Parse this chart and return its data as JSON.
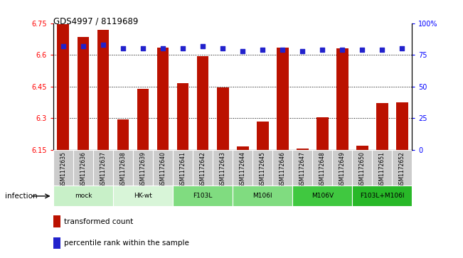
{
  "title": "GDS4997 / 8119689",
  "samples": [
    "GSM1172635",
    "GSM1172636",
    "GSM1172637",
    "GSM1172638",
    "GSM1172639",
    "GSM1172640",
    "GSM1172641",
    "GSM1172642",
    "GSM1172643",
    "GSM1172644",
    "GSM1172645",
    "GSM1172646",
    "GSM1172647",
    "GSM1172648",
    "GSM1172649",
    "GSM1172650",
    "GSM1172651",
    "GSM1172652"
  ],
  "bar_values": [
    6.745,
    6.685,
    6.72,
    6.295,
    6.44,
    6.635,
    6.465,
    6.595,
    6.445,
    6.165,
    6.285,
    6.635,
    6.155,
    6.305,
    6.63,
    6.17,
    6.37,
    6.375
  ],
  "percentile_values": [
    82,
    82,
    83,
    80,
    80,
    80,
    80,
    82,
    80,
    78,
    79,
    79,
    78,
    79,
    79,
    79,
    79,
    80
  ],
  "groups": [
    {
      "label": "mock",
      "start": 0,
      "end": 3,
      "color": "#c8f0c8"
    },
    {
      "label": "HK-wt",
      "start": 3,
      "end": 6,
      "color": "#d8f5d8"
    },
    {
      "label": "F103L",
      "start": 6,
      "end": 9,
      "color": "#80dc80"
    },
    {
      "label": "M106I",
      "start": 9,
      "end": 12,
      "color": "#80dc80"
    },
    {
      "label": "M106V",
      "start": 12,
      "end": 15,
      "color": "#40c840"
    },
    {
      "label": "F103L+M106I",
      "start": 15,
      "end": 18,
      "color": "#28b828"
    }
  ],
  "ylim_left": [
    6.15,
    6.75
  ],
  "ylim_right": [
    0,
    100
  ],
  "yticks_left": [
    6.15,
    6.3,
    6.45,
    6.6,
    6.75
  ],
  "yticks_right": [
    0,
    25,
    50,
    75,
    100
  ],
  "bar_color": "#bb1100",
  "dot_color": "#2222cc",
  "bg_color": "#ffffff",
  "infection_label": "infection",
  "legend_bar": "transformed count",
  "legend_dot": "percentile rank within the sample",
  "sample_box_color": "#cccccc"
}
